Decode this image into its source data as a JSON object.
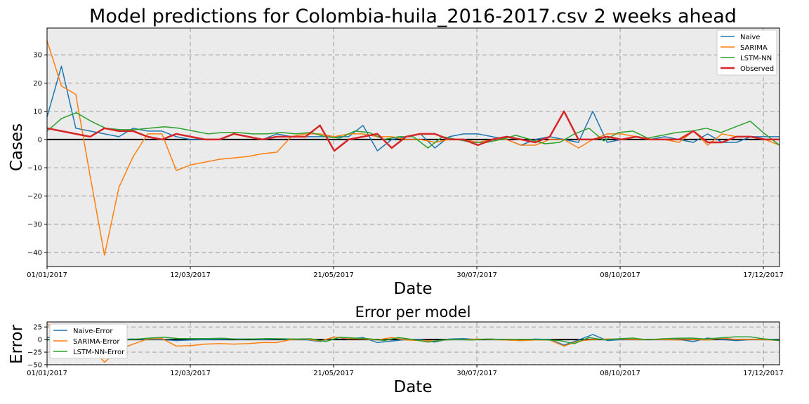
{
  "colors": {
    "naive": "#1f77b4",
    "sarima": "#ff7f0e",
    "lstm": "#2ca02c",
    "observed": "#d62728",
    "plot_bg": "#ebebeb",
    "grid": "#a8a8a8"
  },
  "chart_data": [
    {
      "type": "line",
      "title": "Model predictions for Colombia-huila_2016-2017.csv 2 weeks ahead",
      "xlabel": "Date",
      "ylabel": "Cases",
      "ylim": [
        -45,
        39.5
      ],
      "yticks": [
        30,
        20,
        10,
        0,
        -10,
        -20,
        -30,
        -40
      ],
      "ytick_labels": [
        "30",
        "20",
        "10",
        "0",
        "−10",
        "−20",
        "−30",
        "−40"
      ],
      "xticks": [
        "01/01/2017",
        "12/03/2017",
        "21/05/2017",
        "30/07/2017",
        "08/10/2017",
        "17/12/2017"
      ],
      "grid": true,
      "legend_position": "top-right",
      "series": [
        {
          "name": "Naive",
          "color_key": "naive",
          "width": 1.5,
          "values": [
            8,
            26,
            4,
            3,
            2,
            1,
            4,
            3,
            3,
            1,
            0,
            0,
            0,
            2,
            1,
            0,
            2,
            1,
            1,
            1,
            1,
            1,
            5,
            -4,
            0,
            1,
            2,
            -3,
            1,
            2,
            2,
            1,
            0,
            -2,
            0,
            1,
            0,
            -1,
            10,
            -1,
            0,
            1,
            0,
            1,
            0,
            -1,
            2,
            -1,
            -1,
            1,
            1,
            1
          ]
        },
        {
          "name": "SARIMA",
          "color_key": "sarima",
          "width": 1.5,
          "values": [
            35,
            19,
            16,
            -13,
            -41,
            -17,
            -6,
            2,
            2,
            -11,
            -9,
            -8,
            -7,
            -6.5,
            -6,
            -5,
            -4.5,
            1,
            2,
            2,
            1,
            2,
            2,
            1,
            1,
            0,
            0,
            -1,
            0,
            0,
            -1,
            0,
            0,
            -2,
            -2,
            0,
            0,
            -3,
            0,
            2,
            2,
            1,
            0,
            0,
            -1,
            3,
            -2,
            2,
            1,
            1,
            0,
            -2
          ]
        },
        {
          "name": "LSTM-NN",
          "color_key": "lstm",
          "width": 1.5,
          "values": [
            3,
            7.5,
            9.5,
            6.5,
            4,
            3.5,
            3.5,
            4,
            4.5,
            4,
            3,
            2,
            2.5,
            2.5,
            2,
            2,
            2.5,
            2,
            2.5,
            1,
            0.5,
            3,
            2.5,
            0,
            1,
            1,
            -3,
            1,
            0,
            -1,
            -1,
            0,
            1.5,
            0,
            -1.5,
            -1,
            2,
            4,
            -0.5,
            2.5,
            3,
            0.5,
            1.5,
            2.5,
            3,
            4,
            2.5,
            4.5,
            6.5,
            2,
            -2
          ]
        },
        {
          "name": "Observed",
          "color_key": "observed",
          "width": 2.5,
          "values": [
            4,
            3,
            2,
            1,
            4,
            3,
            3,
            1,
            0,
            2,
            1,
            0,
            0,
            2,
            1,
            0,
            1,
            1,
            1,
            5,
            -4,
            0,
            1,
            2,
            -3,
            1,
            2,
            2,
            0,
            0,
            -2,
            0,
            1,
            0,
            -1,
            1,
            10,
            0,
            0,
            1,
            0,
            1,
            0,
            0,
            0,
            3,
            -1,
            -1,
            1,
            1,
            0,
            0
          ]
        }
      ]
    },
    {
      "type": "line",
      "title": "Error per model",
      "xlabel": "Date",
      "ylabel": "Error",
      "ylim": [
        -50,
        35
      ],
      "yticks": [
        25,
        0,
        -25,
        -50
      ],
      "ytick_labels": [
        "25",
        "0",
        "−25",
        "−50"
      ],
      "xticks": [
        "01/01/2017",
        "12/03/2017",
        "21/05/2017",
        "30/07/2017",
        "08/10/2017",
        "17/12/2017"
      ],
      "grid": true,
      "legend_position": "top-left",
      "series": [
        {
          "name": "Naive-Error",
          "color_key": "naive",
          "width": 1.5,
          "values": [
            4,
            5,
            2,
            1,
            -2,
            0,
            1,
            0,
            0,
            -2,
            -1,
            0,
            0,
            1,
            1,
            0,
            1,
            0,
            0,
            -4,
            5,
            1,
            4,
            -6,
            -3,
            0,
            0,
            -5,
            1,
            2,
            0,
            1,
            -1,
            -2,
            1,
            0,
            -11,
            -1,
            10,
            -2,
            0,
            0,
            0,
            1,
            0,
            -4,
            3,
            0,
            -2,
            0,
            1,
            -1
          ]
        },
        {
          "name": "SARIMA-Error",
          "color_key": "sarima",
          "width": 1.5,
          "values": [
            31,
            16,
            14,
            -14,
            -45,
            -20,
            -9,
            1,
            2,
            -13,
            -12,
            -9,
            -8,
            -9,
            -8,
            -6,
            -6,
            0,
            1,
            -3,
            5,
            2,
            1,
            -1,
            4,
            -1,
            -2,
            -3,
            0,
            0,
            1,
            0,
            -1,
            -2,
            -1,
            -1,
            -13,
            -3,
            0,
            1,
            1,
            0,
            0,
            0,
            -1,
            0,
            -1,
            3,
            0,
            0,
            0,
            -2
          ]
        },
        {
          "name": "LSTM-NN-Error",
          "color_key": "lstm",
          "width": 1.5,
          "values": [
            -1,
            4.5,
            7.5,
            5.5,
            0,
            0.5,
            0.5,
            3,
            4.5,
            2,
            2,
            2,
            2.5,
            0.5,
            1,
            2,
            1.5,
            1,
            1.5,
            -4,
            4.5,
            3,
            1.5,
            -2,
            4,
            0,
            -5,
            -1,
            0,
            -1,
            1,
            0,
            0.5,
            0,
            -0.5,
            -2,
            -8,
            4,
            -0.5,
            1.5,
            3,
            -0.5,
            1.5,
            2.5,
            3,
            1,
            3.5,
            5.5,
            5.5,
            1,
            -2
          ]
        }
      ]
    }
  ]
}
